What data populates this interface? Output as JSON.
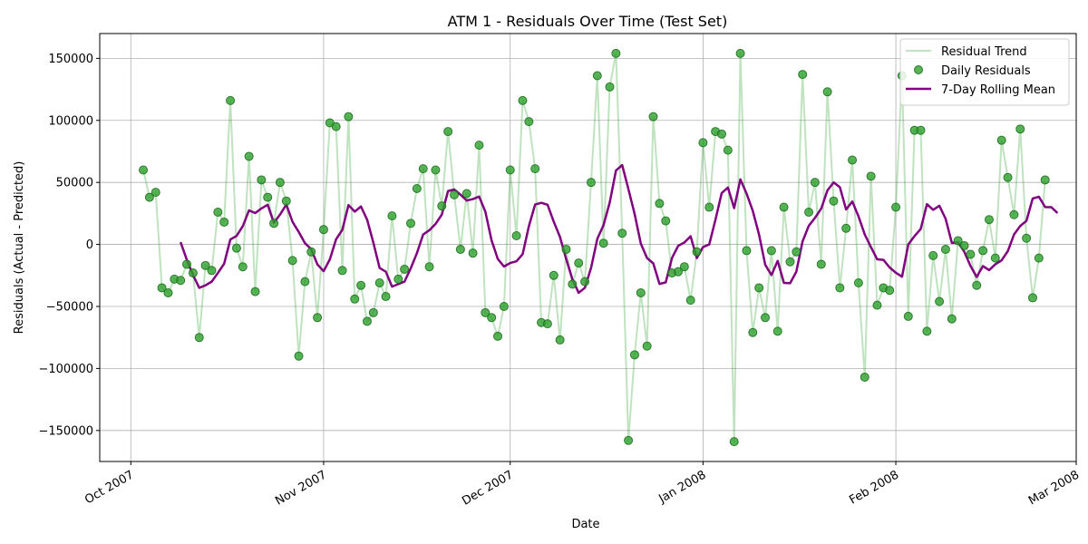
{
  "chart_data": {
    "type": "line",
    "title": "ATM 1 - Residuals Over Time (Test Set)",
    "xlabel": "Date",
    "ylabel": "Residuals (Actual - Predicted)",
    "ylim": [
      -175000,
      170000
    ],
    "xlim": [
      "2007-09-26",
      "2008-03-01"
    ],
    "yticks": [
      -150000,
      -100000,
      -50000,
      0,
      50000,
      100000,
      150000
    ],
    "xticks": [
      {
        "date": "2007-10-01",
        "label": "Oct 2007"
      },
      {
        "date": "2007-11-01",
        "label": "Nov 2007"
      },
      {
        "date": "2007-12-01",
        "label": "Dec 2007"
      },
      {
        "date": "2008-01-01",
        "label": "Jan 2008"
      },
      {
        "date": "2008-02-01",
        "label": "Feb 2008"
      },
      {
        "date": "2008-03-01",
        "label": "Mar 2008"
      }
    ],
    "grid": true,
    "legend_position": "top-right",
    "start_date": "2007-10-03",
    "series": [
      {
        "name": "Residual Trend",
        "kind": "line",
        "color": "#2ca02c"
      },
      {
        "name": "Daily Residuals",
        "kind": "scatter",
        "color": "#2ca02c"
      },
      {
        "name": "7-Day Rolling Mean",
        "kind": "line",
        "color": "#800080"
      }
    ],
    "residuals": [
      60000,
      38000,
      42000,
      -35000,
      -39000,
      -28000,
      -29000,
      -16000,
      -23000,
      -75000,
      -17000,
      -21000,
      26000,
      18000,
      116000,
      -3000,
      -18000,
      71000,
      -38000,
      52000,
      38000,
      17000,
      50000,
      35000,
      -13000,
      -90000,
      -30000,
      -6000,
      -59000,
      12000,
      98000,
      95000,
      -21000,
      103000,
      -44000,
      -33000,
      -62000,
      -55000,
      -31000,
      -42000,
      23000,
      -28000,
      -20000,
      17000,
      45000,
      61000,
      -18000,
      60000,
      31000,
      91000,
      40000,
      -4000,
      41000,
      -7000,
      80000,
      -55000,
      -59000,
      -74000,
      -50000,
      60000,
      7000,
      116000,
      99000,
      61000,
      -63000,
      -64000,
      -25000,
      -77000,
      -4000,
      -32000,
      -15000,
      -30000,
      50000,
      136000,
      1000,
      127000,
      154000,
      9000,
      -158000,
      -89000,
      -39000,
      -82000,
      103000,
      33000,
      19000,
      -23000,
      -22000,
      -18000,
      -45000,
      -6000,
      82000,
      30000,
      91000,
      89000,
      76000,
      -159000,
      154000,
      -5000,
      -71000,
      -35000,
      -59000,
      -5000,
      -70000,
      30000,
      -14000,
      -6000,
      137000,
      26000,
      50000,
      -16000,
      123000,
      35000,
      -35000,
      13000,
      68000,
      -31000,
      -107000,
      55000,
      -49000,
      -35000,
      -37000,
      30000,
      136000,
      -58000,
      92000,
      92000,
      -70000,
      -9000,
      -46000,
      -4000,
      -60000,
      3000,
      -1000,
      -8000,
      -33000,
      -5000,
      20000,
      -11000,
      84000,
      54000,
      24000,
      93000,
      5000,
      -43000,
      -11000,
      52000
    ],
    "rolling_mean": [
      null,
      null,
      null,
      null,
      null,
      null,
      1857,
      -12429,
      -24714,
      -35000,
      -33000,
      -30000,
      -23000,
      -15571,
      4000,
      6857,
      14714,
      27429,
      25286,
      29000,
      32000,
      17429,
      24143,
      32143,
      18143,
      10000,
      1000,
      -3857,
      -16143,
      -21571,
      -12000,
      4143,
      11714,
      31714,
      26429,
      30571,
      19857,
      1286,
      -19000,
      -22000,
      -34000,
      -32000,
      -30000,
      -19286,
      -7000,
      8000,
      11429,
      16571,
      24000,
      43000,
      44286,
      40143,
      35429,
      36571,
      38571,
      26429,
      3286,
      -11714,
      -17857,
      -15000,
      -13571,
      -7857,
      14714,
      32143,
      33571,
      32000,
      18286,
      6000,
      -11857,
      -28143,
      -39000,
      -35000,
      -18857,
      4429,
      15571,
      33857,
      59571,
      64000,
      44571,
      24571,
      571,
      -11000,
      -15286,
      -31857,
      -30571,
      -11000,
      -1143,
      1571,
      6571,
      -11000,
      -2143,
      0,
      20000,
      41429,
      45857,
      29286,
      52429,
      41000,
      27000,
      8000,
      -16429,
      -24714,
      -13286,
      -31000,
      -31286,
      -22000,
      2429,
      15000,
      21429,
      28857,
      43571,
      50000,
      46143,
      28143,
      34571,
      22571,
      8000,
      -2143,
      -12000,
      -12429,
      -18571,
      -22857,
      -26000,
      0,
      6714,
      12429,
      32429,
      27857,
      31143,
      20714,
      1286,
      1571,
      -5857,
      -17286,
      -26286,
      -17429,
      -20714,
      -16000,
      -12857,
      -5429,
      8000,
      14857,
      19000,
      37000,
      38429,
      30143,
      30000,
      25286
    ]
  },
  "legend": {
    "trend_label": "Residual Trend",
    "scatter_label": "Daily Residuals",
    "rolling_label": "7-Day Rolling Mean"
  },
  "colors": {
    "trend": "#2ca02c",
    "scatter": "#2ca02c",
    "rolling": "#800080",
    "grid": "#b0b0b0"
  }
}
